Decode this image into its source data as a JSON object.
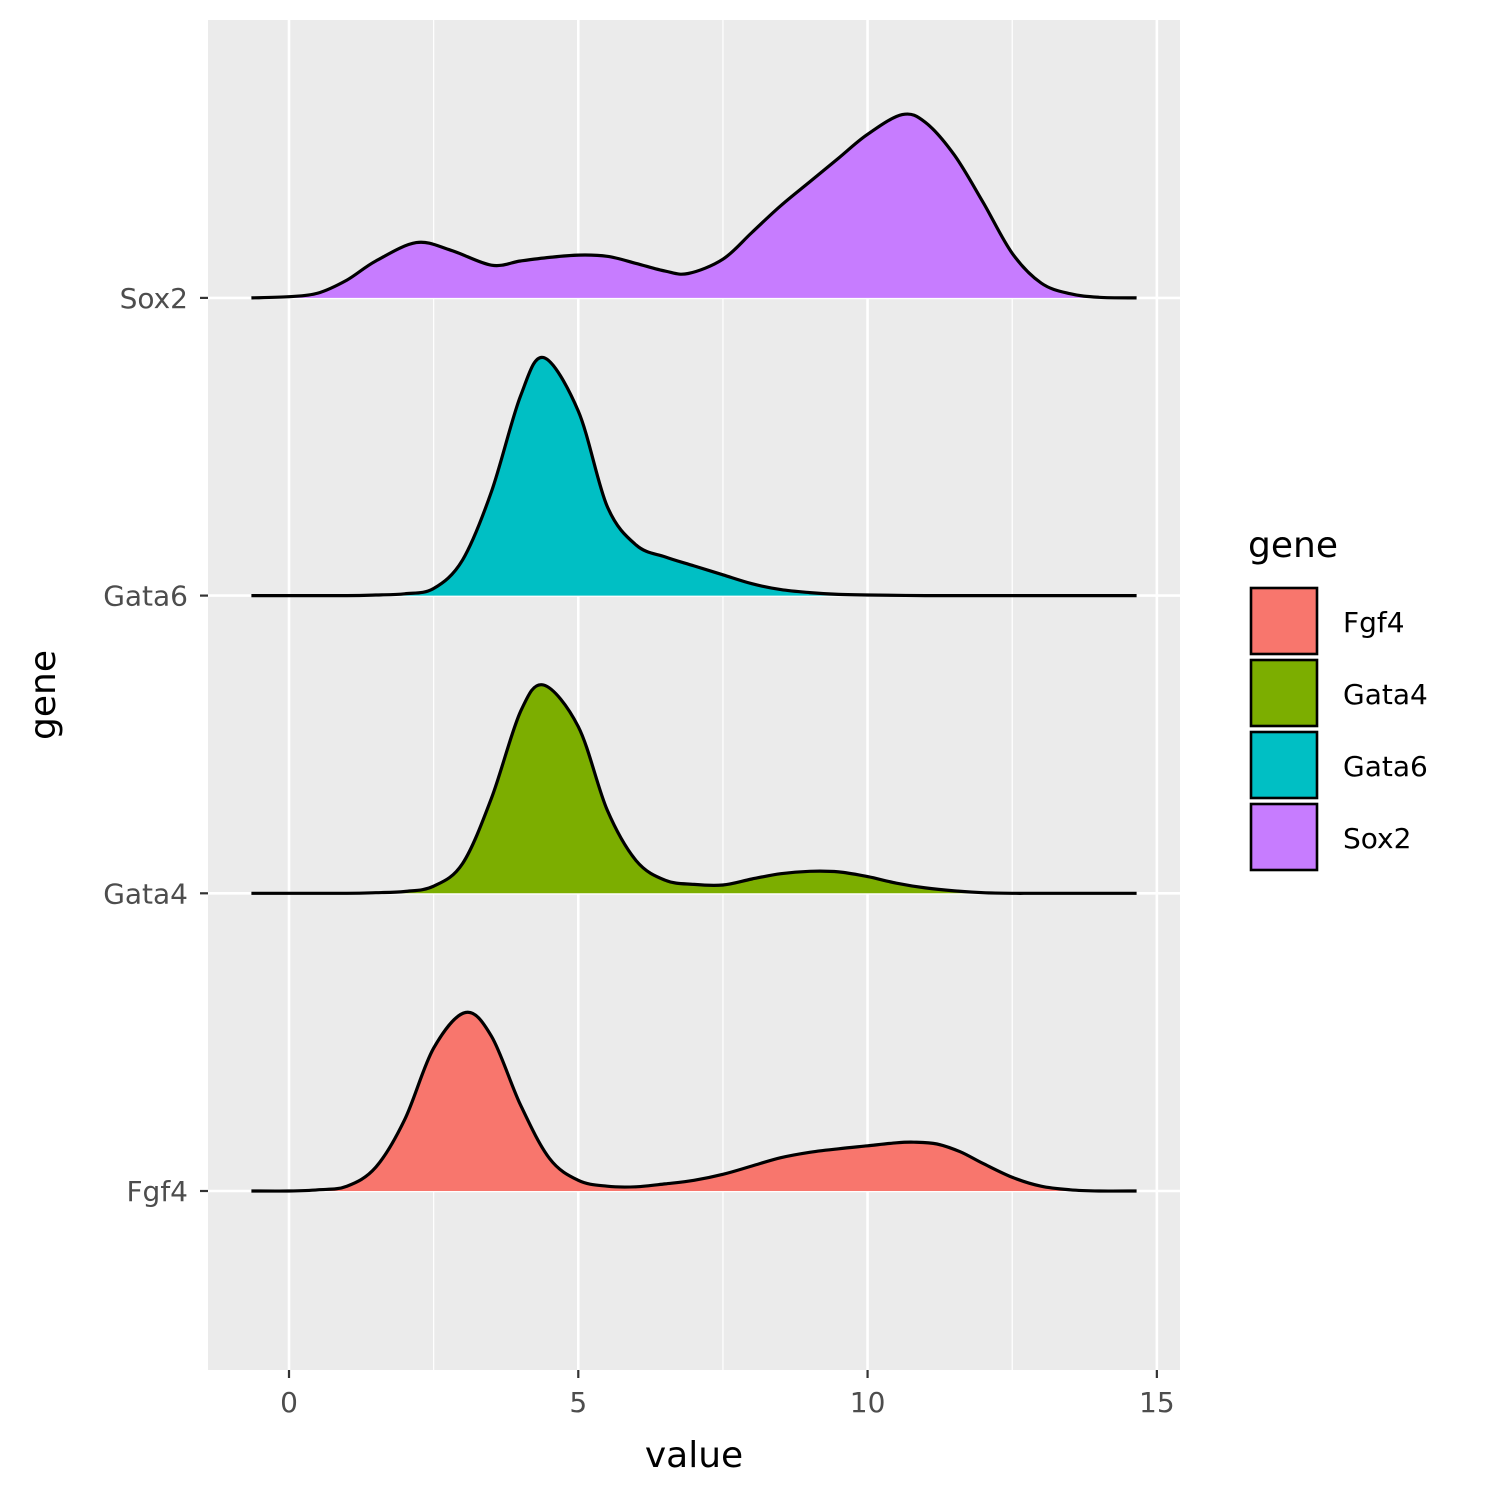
{
  "chart_data": {
    "type": "area",
    "subtype": "ridgeline",
    "xlabel": "value",
    "ylabel": "gene",
    "xlim": [
      -1.4,
      15.4
    ],
    "x_ticks": [
      0,
      5,
      10,
      15
    ],
    "x_tick_labels": [
      "0",
      "5",
      "10",
      "15"
    ],
    "categories": [
      "Fgf4",
      "Gata4",
      "Gata6",
      "Sox2"
    ],
    "grid": true,
    "legend": {
      "title": "gene",
      "position": "right",
      "entries": [
        "Fgf4",
        "Gata4",
        "Gata6",
        "Sox2"
      ]
    },
    "series": [
      {
        "name": "Fgf4",
        "color": "#F8766D",
        "x": [
          -0.65,
          0.0,
          0.5,
          1.0,
          1.5,
          2.0,
          2.5,
          3.05,
          3.5,
          4.0,
          4.5,
          5.0,
          5.5,
          6.0,
          6.5,
          7.0,
          7.5,
          8.0,
          8.5,
          9.0,
          9.5,
          10.0,
          10.5,
          10.8,
          11.2,
          11.6,
          12.0,
          12.5,
          13.0,
          13.5,
          14.0,
          14.65
        ],
        "height": [
          0.0,
          0.0,
          0.02,
          0.08,
          0.4,
          1.2,
          2.4,
          3.0,
          2.6,
          1.45,
          0.55,
          0.18,
          0.08,
          0.07,
          0.12,
          0.18,
          0.28,
          0.42,
          0.56,
          0.65,
          0.71,
          0.76,
          0.81,
          0.82,
          0.79,
          0.66,
          0.46,
          0.23,
          0.08,
          0.02,
          0.0,
          0.0
        ]
      },
      {
        "name": "Gata4",
        "color": "#7CAE00",
        "x": [
          -0.65,
          0.0,
          1.0,
          1.5,
          2.0,
          2.5,
          3.0,
          3.5,
          4.0,
          4.4,
          5.0,
          5.5,
          6.0,
          6.5,
          7.0,
          7.5,
          8.0,
          8.5,
          9.0,
          9.5,
          10.0,
          10.5,
          11.0,
          11.5,
          12.0,
          12.5,
          13.0,
          14.65
        ],
        "height": [
          0.0,
          0.0,
          0.0,
          0.01,
          0.03,
          0.12,
          0.5,
          1.6,
          3.05,
          3.5,
          2.8,
          1.4,
          0.55,
          0.22,
          0.15,
          0.14,
          0.24,
          0.33,
          0.37,
          0.36,
          0.28,
          0.17,
          0.09,
          0.04,
          0.01,
          0.0,
          0.0,
          0.0
        ]
      },
      {
        "name": "Gata6",
        "color": "#00BFC4",
        "x": [
          -0.65,
          0.0,
          1.0,
          1.5,
          2.0,
          2.5,
          3.0,
          3.5,
          4.0,
          4.4,
          5.0,
          5.5,
          6.0,
          6.5,
          7.0,
          7.5,
          8.0,
          8.5,
          9.0,
          9.5,
          10.0,
          11.0,
          12.0,
          14.65
        ],
        "height": [
          0.0,
          0.0,
          0.0,
          0.01,
          0.03,
          0.12,
          0.6,
          1.75,
          3.35,
          4.0,
          3.1,
          1.5,
          0.85,
          0.65,
          0.5,
          0.35,
          0.2,
          0.1,
          0.05,
          0.02,
          0.01,
          0.0,
          0.0,
          0.0
        ]
      },
      {
        "name": "Sox2",
        "color": "#C77CFF",
        "x": [
          -0.65,
          0.0,
          0.5,
          1.0,
          1.5,
          2.2,
          2.8,
          3.5,
          4.0,
          4.5,
          5.0,
          5.5,
          6.0,
          6.5,
          6.9,
          7.5,
          8.0,
          8.5,
          9.0,
          9.5,
          10.0,
          10.6,
          11.0,
          11.5,
          12.0,
          12.5,
          13.0,
          13.5,
          14.0,
          14.65
        ],
        "height": [
          0.0,
          0.02,
          0.08,
          0.3,
          0.62,
          0.93,
          0.8,
          0.55,
          0.62,
          0.68,
          0.72,
          0.7,
          0.58,
          0.45,
          0.41,
          0.65,
          1.1,
          1.55,
          1.95,
          2.35,
          2.75,
          3.08,
          2.95,
          2.4,
          1.6,
          0.75,
          0.25,
          0.07,
          0.01,
          0.0
        ]
      }
    ]
  }
}
